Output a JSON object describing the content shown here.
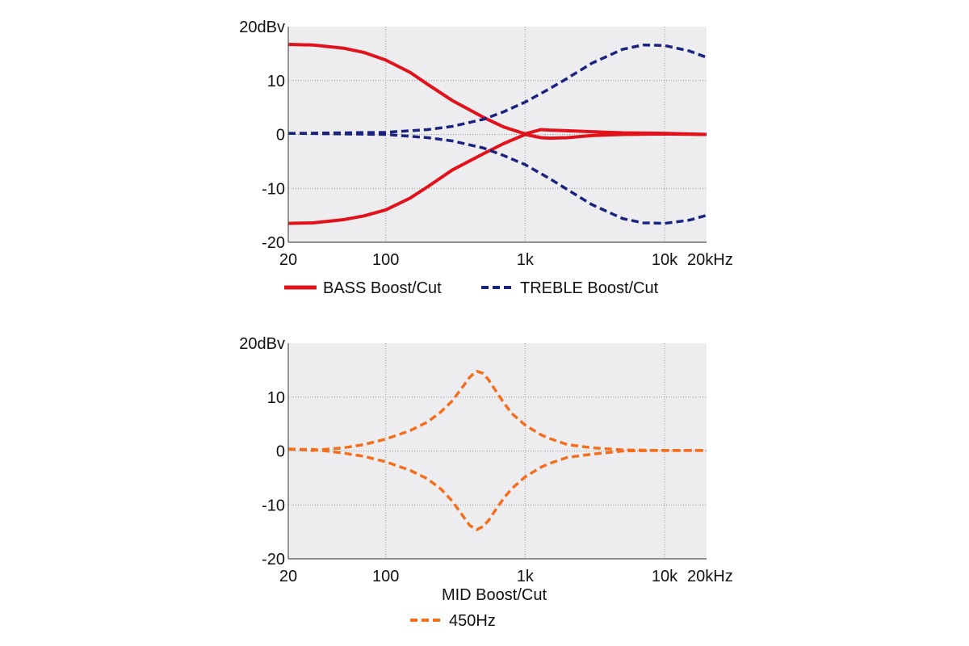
{
  "colors": {
    "plot_bg": "#ededf0",
    "grid": "#9a9a9a",
    "axis": "#555555",
    "bass": "#e2121b",
    "treble": "#1a237e",
    "mid": "#f36f1e"
  },
  "chart_data": [
    {
      "type": "line",
      "xscale": "log",
      "xlim": [
        20,
        20000
      ],
      "ylim": [
        -20,
        20
      ],
      "xticks": [
        20,
        100,
        1000,
        10000,
        20000
      ],
      "xtick_labels": [
        "20",
        "100",
        "1k",
        "10k",
        "20kHz"
      ],
      "yticks": [
        20,
        10,
        0,
        -10,
        -20
      ],
      "ytick_labels": [
        "20dBv",
        "10",
        "0",
        "-10",
        "-20"
      ],
      "grid": true,
      "legend": [
        "BASS Boost/Cut",
        "TREBLE Boost/Cut"
      ],
      "legend_placement": "bottom",
      "series": [
        {
          "name": "BASS Boost/Cut",
          "style": "solid",
          "color_key": "bass",
          "x": [
            20,
            30,
            50,
            70,
            100,
            150,
            200,
            300,
            500,
            700,
            1000,
            1300,
            1500,
            2000,
            3000,
            5000,
            10000,
            20000
          ],
          "y": [
            16.7,
            16.6,
            16.0,
            15.2,
            13.8,
            11.5,
            9.3,
            6.3,
            3.2,
            1.4,
            0.1,
            0.9,
            0.8,
            0.7,
            0.5,
            0.3,
            0.2,
            0
          ]
        },
        {
          "name": "BASS Boost/Cut",
          "style": "solid",
          "color_key": "bass",
          "x": [
            20,
            30,
            50,
            70,
            100,
            150,
            200,
            300,
            500,
            700,
            1000,
            1300,
            1500,
            2000,
            3000,
            5000,
            10000,
            20000
          ],
          "y": [
            -16.5,
            -16.4,
            -15.8,
            -15.1,
            -14.0,
            -11.8,
            -9.7,
            -6.6,
            -3.6,
            -1.7,
            0.0,
            -0.6,
            -0.7,
            -0.6,
            -0.2,
            0.0,
            0.1,
            0
          ]
        },
        {
          "name": "TREBLE Boost/Cut",
          "style": "dashed",
          "color_key": "treble",
          "x": [
            20,
            50,
            100,
            200,
            300,
            500,
            700,
            1000,
            1500,
            2000,
            3000,
            5000,
            7000,
            10000,
            15000,
            20000
          ],
          "y": [
            0.2,
            0.3,
            0.4,
            0.9,
            1.5,
            2.8,
            4.2,
            6.0,
            8.5,
            10.4,
            13.2,
            15.8,
            16.6,
            16.5,
            15.5,
            14.3
          ]
        },
        {
          "name": "TREBLE Boost/Cut",
          "style": "dashed",
          "color_key": "treble",
          "x": [
            20,
            50,
            100,
            200,
            300,
            500,
            700,
            1000,
            1500,
            2000,
            3000,
            5000,
            7000,
            10000,
            15000,
            20000
          ],
          "y": [
            0.2,
            0.1,
            0.0,
            -0.6,
            -1.2,
            -2.5,
            -3.9,
            -5.6,
            -8.2,
            -10.2,
            -13.0,
            -15.6,
            -16.4,
            -16.5,
            -15.9,
            -15.0
          ]
        }
      ]
    },
    {
      "type": "line",
      "xscale": "log",
      "xlim": [
        20,
        20000
      ],
      "ylim": [
        -20,
        20
      ],
      "xticks": [
        20,
        100,
        1000,
        10000,
        20000
      ],
      "xtick_labels": [
        "20",
        "100",
        "1k",
        "10k",
        "20kHz"
      ],
      "yticks": [
        20,
        10,
        0,
        -10,
        -20
      ],
      "ytick_labels": [
        "20dBv",
        "10",
        "0",
        "-10",
        "-20"
      ],
      "grid": true,
      "legend_title": "MID Boost/Cut",
      "legend": [
        "450Hz"
      ],
      "legend_placement": "bottom",
      "series": [
        {
          "name": "450Hz",
          "style": "dashed",
          "color_key": "mid",
          "x": [
            20,
            30,
            50,
            70,
            100,
            150,
            200,
            250,
            300,
            350,
            400,
            450,
            500,
            550,
            600,
            700,
            800,
            1000,
            1300,
            1500,
            2000,
            3000,
            5000,
            10000,
            20000
          ],
          "y": [
            0.4,
            0.1,
            0.6,
            1.2,
            2.2,
            3.8,
            5.4,
            7.3,
            9.3,
            11.6,
            13.7,
            14.8,
            14.4,
            13.1,
            11.6,
            9.0,
            7.0,
            4.8,
            3.0,
            2.3,
            1.2,
            0.6,
            0.2,
            0.1,
            0.1
          ]
        },
        {
          "name": "450Hz",
          "style": "dashed",
          "color_key": "mid",
          "x": [
            20,
            30,
            50,
            70,
            100,
            150,
            200,
            250,
            300,
            350,
            400,
            450,
            500,
            550,
            600,
            700,
            800,
            1000,
            1300,
            1500,
            2000,
            3000,
            5000,
            10000,
            20000
          ],
          "y": [
            0.3,
            0.3,
            -0.4,
            -1.0,
            -2.0,
            -3.6,
            -5.2,
            -7.1,
            -9.3,
            -11.7,
            -13.8,
            -14.6,
            -14.0,
            -12.8,
            -11.3,
            -8.8,
            -7.0,
            -4.8,
            -3.0,
            -2.3,
            -1.2,
            -0.6,
            0.0,
            0.1,
            0.1
          ]
        }
      ]
    }
  ]
}
